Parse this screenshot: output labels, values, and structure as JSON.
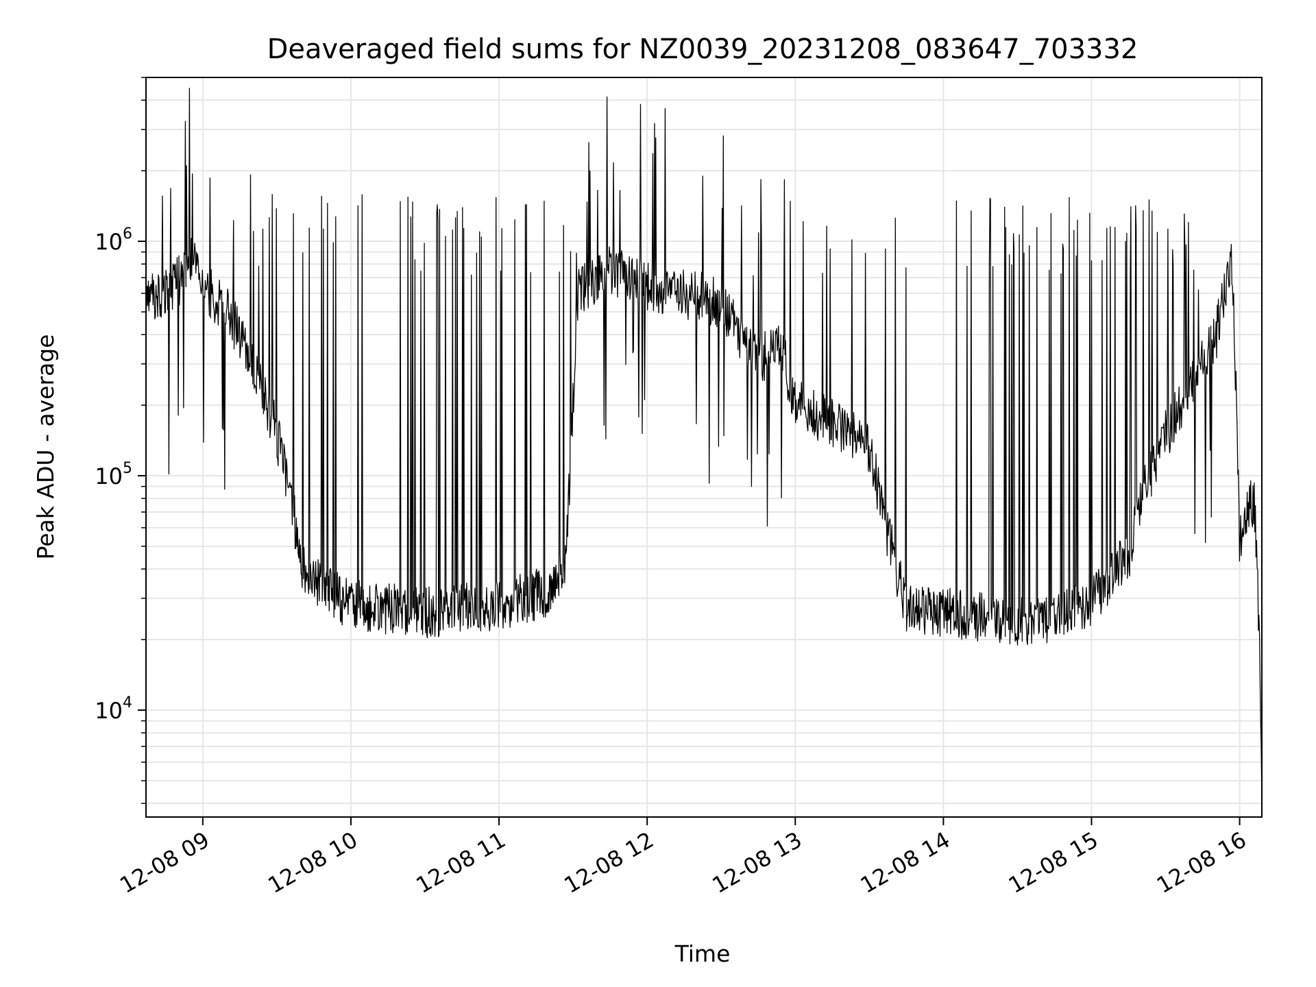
{
  "chart_data": {
    "type": "line",
    "title": "Deaveraged field sums for NZ0039_20231208_083647_703332",
    "xlabel": "Time",
    "ylabel": "Peak ADU - average",
    "y_scale": "log",
    "grid": true,
    "line_color": "#000000",
    "grid_color": "#e6e6e6",
    "xlim": [
      "12-08 08:37",
      "12-08 16:09"
    ],
    "ylim": [
      3500,
      5000000
    ],
    "x_ticks": [
      {
        "value": "12-08 09:00",
        "label": "12-08 09"
      },
      {
        "value": "12-08 10:00",
        "label": "12-08 10"
      },
      {
        "value": "12-08 11:00",
        "label": "12-08 11"
      },
      {
        "value": "12-08 12:00",
        "label": "12-08 12"
      },
      {
        "value": "12-08 13:00",
        "label": "12-08 13"
      },
      {
        "value": "12-08 14:00",
        "label": "12-08 14"
      },
      {
        "value": "12-08 15:00",
        "label": "12-08 15"
      },
      {
        "value": "12-08 16:00",
        "label": "12-08 16"
      }
    ],
    "y_ticks": [
      {
        "value": 10000,
        "base": "10",
        "exp": "4"
      },
      {
        "value": 100000,
        "base": "10",
        "exp": "5"
      },
      {
        "value": 1000000,
        "base": "10",
        "exp": "6"
      }
    ],
    "series": [
      {
        "x": [
          "12-08 08:37",
          "12-08 08:45",
          "12-08 08:52",
          "12-08 08:56",
          "12-08 09:00",
          "12-08 09:10",
          "12-08 09:20",
          "12-08 09:30",
          "12-08 09:36",
          "12-08 09:40",
          "12-08 09:50",
          "12-08 10:00",
          "12-08 10:15",
          "12-08 10:30",
          "12-08 10:45",
          "12-08 11:00",
          "12-08 11:10",
          "12-08 11:20",
          "12-08 11:27",
          "12-08 11:32",
          "12-08 11:45",
          "12-08 12:00",
          "12-08 12:15",
          "12-08 12:30",
          "12-08 12:45",
          "12-08 12:53",
          "12-08 13:00",
          "12-08 13:10",
          "12-08 13:20",
          "12-08 13:30",
          "12-08 13:37",
          "12-08 13:45",
          "12-08 14:00",
          "12-08 14:15",
          "12-08 14:30",
          "12-08 14:45",
          "12-08 15:00",
          "12-08 15:10",
          "12-08 15:15",
          "12-08 15:20",
          "12-08 15:30",
          "12-08 15:40",
          "12-08 15:50",
          "12-08 15:57",
          "12-08 15:59",
          "12-08 16:00",
          "12-08 16:03",
          "12-08 16:06",
          "12-08 16:08",
          "12-08 16:09"
        ],
        "y": [
          550000,
          620000,
          700000,
          850000,
          650000,
          500000,
          320000,
          150000,
          80000,
          40000,
          32000,
          28000,
          27000,
          26000,
          27000,
          28000,
          30000,
          32000,
          40000,
          600000,
          750000,
          650000,
          600000,
          550000,
          300000,
          400000,
          200000,
          180000,
          160000,
          130000,
          60000,
          27000,
          26000,
          25000,
          24000,
          24000,
          29000,
          40000,
          45000,
          80000,
          150000,
          230000,
          380000,
          800000,
          150000,
          50000,
          75000,
          75000,
          20000,
          5000
        ]
      }
    ]
  }
}
